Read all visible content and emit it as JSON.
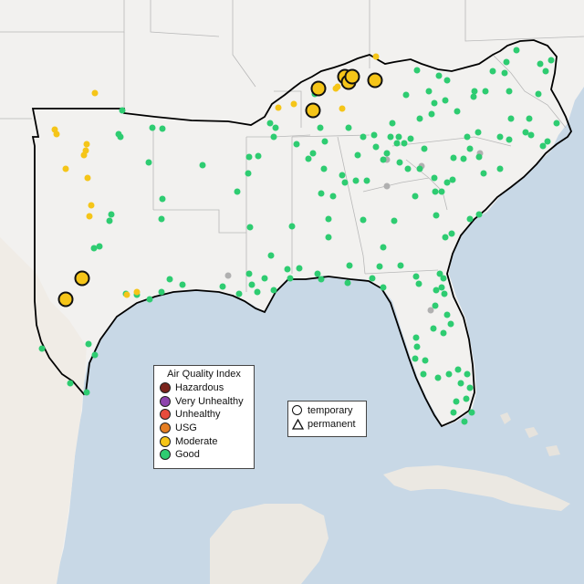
{
  "colors": {
    "water": "#c8d8e6",
    "land": "#f2f1ef",
    "land_mexico": "#f0ece6",
    "state_line": "#b8b8b8",
    "region_outline": "#000000",
    "good": "#2ecc71",
    "moderate": "#f5c518",
    "usg": "#e67e22",
    "unhealthy": "#e74c3c",
    "very_unhealthy": "#8e44ad",
    "hazardous": "#7b241c",
    "no_data": "#b0b0b0"
  },
  "aqi_legend": {
    "title": "Air Quality Index",
    "items": [
      {
        "label": "Hazardous",
        "color": "#7b241c"
      },
      {
        "label": "Very Unhealthy",
        "color": "#8e44ad"
      },
      {
        "label": "Unhealthy",
        "color": "#e74c3c"
      },
      {
        "label": "USG",
        "color": "#e67e22"
      },
      {
        "label": "Moderate",
        "color": "#f5c518"
      },
      {
        "label": "Good",
        "color": "#2ecc71"
      }
    ]
  },
  "site_legend": {
    "temporary_label": "temporary",
    "permanent_label": "permanent"
  }
}
